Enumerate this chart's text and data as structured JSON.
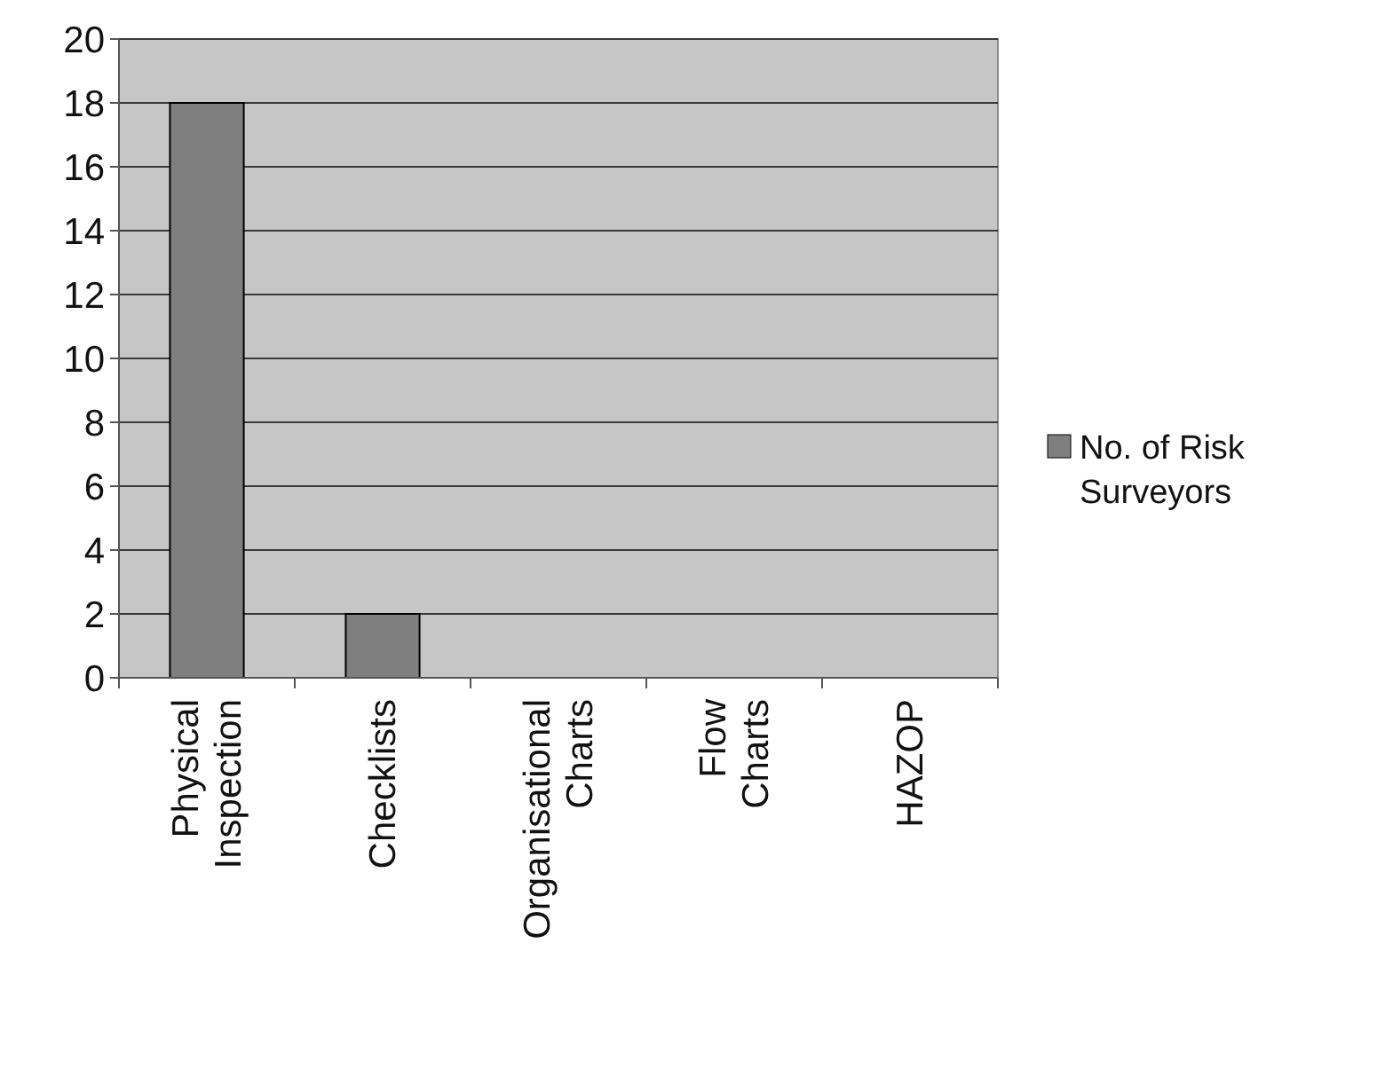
{
  "chart_data": {
    "type": "bar",
    "categories": [
      "Physical Inspection",
      "Checklists",
      "Organisational Charts",
      "Flow Charts",
      "HAZOP"
    ],
    "series": [
      {
        "name": "No. of Risk Surveyors",
        "color": "#7f7f7f",
        "values": [
          18,
          2,
          0,
          0,
          0
        ]
      }
    ],
    "ylim": [
      0,
      20
    ],
    "yticks": [
      0,
      2,
      4,
      6,
      8,
      10,
      12,
      14,
      16,
      18,
      20
    ],
    "grid": "y",
    "legend": "right"
  }
}
